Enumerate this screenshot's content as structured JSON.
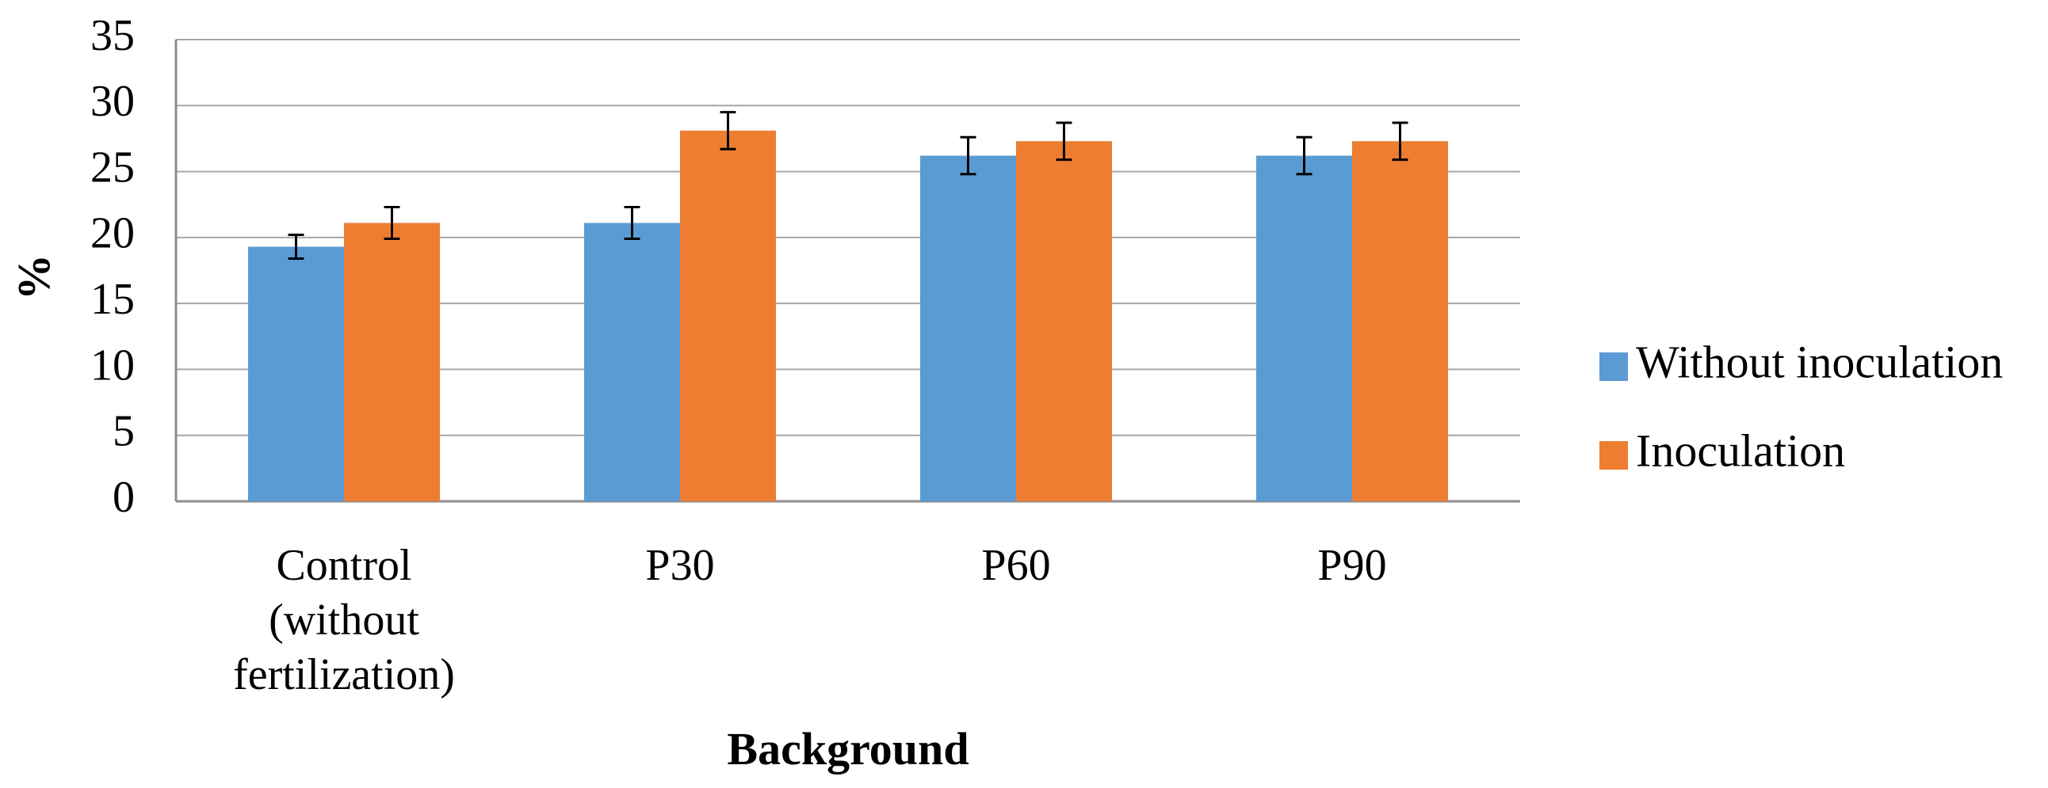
{
  "chart_data": {
    "type": "bar",
    "categories": [
      [
        "Control",
        "(without",
        "fertilization)"
      ],
      [
        "P30"
      ],
      [
        "P60"
      ],
      [
        "P90"
      ]
    ],
    "series": [
      {
        "name": "Without inoculation",
        "color": "#5B9BD5",
        "values": [
          19.3,
          21.1,
          26.2,
          26.2
        ],
        "errors": [
          0.9,
          1.2,
          1.4,
          1.4
        ]
      },
      {
        "name": "Inoculation",
        "color": "#ED7D31",
        "values": [
          21.1,
          28.1,
          27.3,
          27.3
        ],
        "errors": [
          1.2,
          1.4,
          1.4,
          1.4
        ]
      }
    ],
    "xlabel": "Background",
    "ylabel": "%",
    "ylim": [
      0,
      35
    ],
    "yticks": [
      0,
      5,
      10,
      15,
      20,
      25,
      30,
      35
    ],
    "grid": true,
    "legend": "right"
  }
}
